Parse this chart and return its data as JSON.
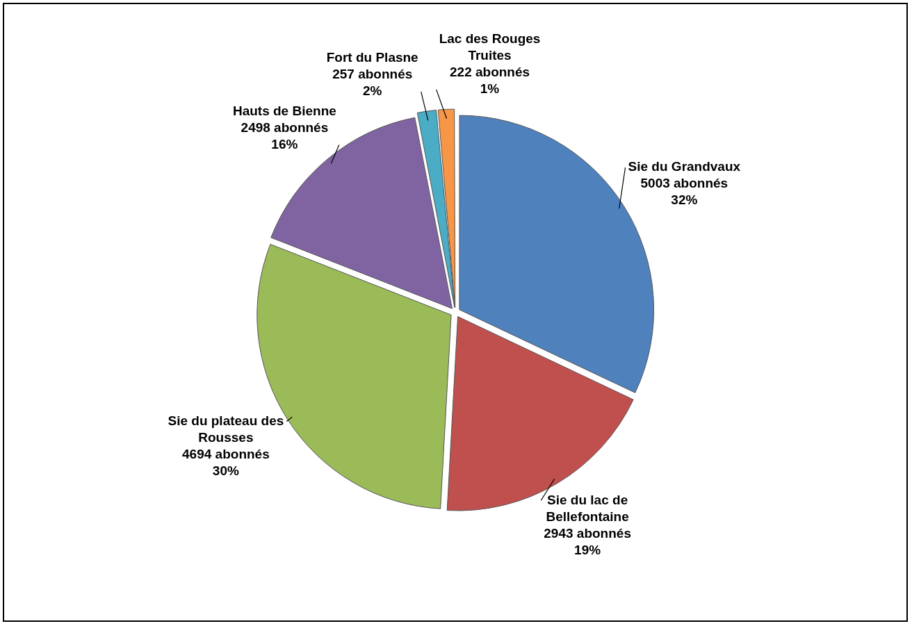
{
  "chart_data": {
    "type": "pie",
    "categories": [
      "Sie du Grandvaux",
      "Sie du lac de Bellefontaine",
      "Sie du plateau des Rousses",
      "Hauts de Bienne",
      "Fort du Plasne",
      "Lac des Rouges Truites"
    ],
    "values": [
      5003,
      2943,
      4694,
      2498,
      257,
      222
    ],
    "value_labels": [
      "5003 abonnés\n32%",
      "2943 abonnés\n19%",
      "4694 abonnés\n30%",
      "2498 abonnés\n16%",
      "257 abonnés\n2%",
      "222 abonnés\n1%"
    ],
    "colors": [
      "#4f81bd",
      "#c0504d",
      "#9bbb59",
      "#8064a2",
      "#4bacc6",
      "#f79646"
    ],
    "legend": false
  }
}
